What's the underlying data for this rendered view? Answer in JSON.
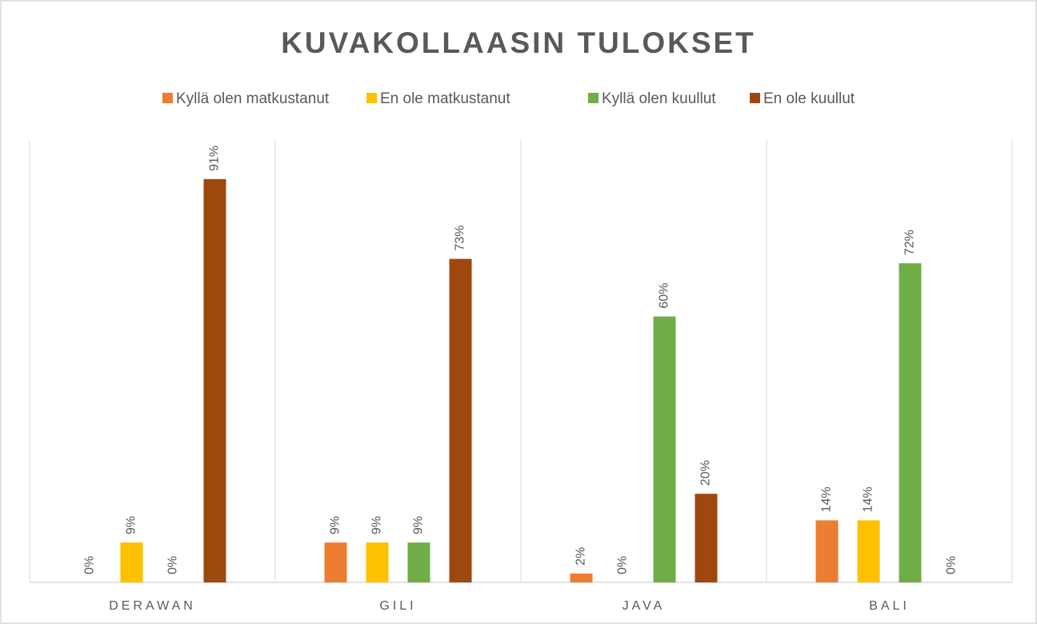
{
  "chart_data": {
    "type": "bar",
    "title": "KUVAKOLLAASIN TULOKSET",
    "categories": [
      "DERAWAN",
      "GILI",
      "JAVA",
      "BALI"
    ],
    "series": [
      {
        "name": "Kyllä olen matkustanut",
        "color": "#ED7D31",
        "values": [
          0,
          9,
          2,
          14
        ],
        "value_labels": [
          "0%",
          "9%",
          "2%",
          "14%"
        ]
      },
      {
        "name": "En ole matkustanut",
        "color": "#FFC000",
        "values": [
          9,
          9,
          0,
          14
        ],
        "value_labels": [
          "9%",
          "9%",
          "0%",
          "14%"
        ]
      },
      {
        "name": "Kyllä olen kuullut",
        "color": "#70AD47",
        "values": [
          0,
          9,
          60,
          72
        ],
        "value_labels": [
          "0%",
          "9%",
          "60%",
          "72%"
        ]
      },
      {
        "name": "En ole kuullut",
        "color": "#9E480E",
        "values": [
          91,
          73,
          20,
          0
        ],
        "value_labels": [
          "91%",
          "73%",
          "20%",
          "0%"
        ]
      }
    ],
    "legend": "top"
  }
}
